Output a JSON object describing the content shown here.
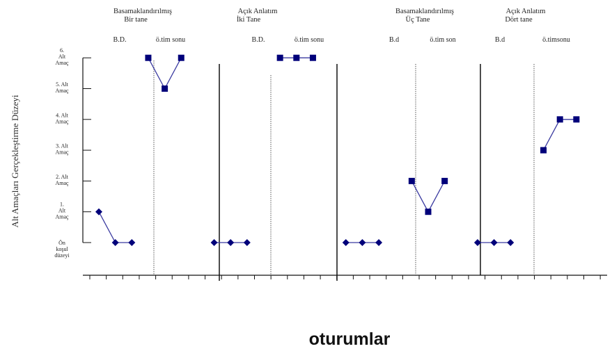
{
  "chart_data": {
    "type": "line",
    "title": "",
    "xlabel": "oturumlar",
    "ylabel": "Alt Amaçları Gerçekleştirme Düzeyi",
    "ylim": [
      0,
      6
    ],
    "y_ticks": [
      {
        "value": 0,
        "lines": [
          "Ön",
          "koşul",
          "düzeyi"
        ]
      },
      {
        "value": 1,
        "lines": [
          "1.",
          "Alt",
          "Amaç"
        ]
      },
      {
        "value": 2,
        "lines": [
          "2. Alt",
          "Amaç"
        ]
      },
      {
        "value": 3,
        "lines": [
          "3. Alt",
          "Amaç"
        ]
      },
      {
        "value": 4,
        "lines": [
          "4. Alt",
          "Amaç"
        ]
      },
      {
        "value": 5,
        "lines": [
          "5. Alt",
          "Amaç"
        ]
      },
      {
        "value": 6,
        "lines": [
          "6.",
          "Alt",
          "Amaç"
        ]
      }
    ],
    "x_sessions": 28,
    "grid": false,
    "goals": [
      {
        "title": [
          "Basamaklandırılmış",
          "Bir tane"
        ],
        "phases": [
          "B.D.",
          "ö.tim sonu"
        ]
      },
      {
        "title": [
          "Açık  Anlatım",
          "İki Tane"
        ],
        "phases": [
          "B.D.",
          "ö.tim sonu"
        ]
      },
      {
        "title": [
          "Basamaklandırılmış",
          "Üç Tane"
        ],
        "phases": [
          "B.d",
          "ö.tim son"
        ]
      },
      {
        "title": [
          "Açık   Anlatım",
          "Dört tane"
        ],
        "phases": [
          "B.d",
          "ö.timsonu"
        ]
      }
    ],
    "series": [
      {
        "marker": "diamond",
        "x": [
          1,
          2,
          3
        ],
        "values": [
          1,
          0,
          0
        ]
      },
      {
        "marker": "square",
        "x": [
          4,
          5,
          6
        ],
        "values": [
          6,
          5,
          6
        ]
      },
      {
        "marker": "diamond",
        "x": [
          8,
          9,
          10
        ],
        "values": [
          0,
          0,
          0
        ]
      },
      {
        "marker": "square",
        "x": [
          12,
          13,
          14
        ],
        "values": [
          6,
          6,
          6
        ]
      },
      {
        "marker": "diamond",
        "x": [
          16,
          17,
          18
        ],
        "values": [
          0,
          0,
          0
        ]
      },
      {
        "marker": "square",
        "x": [
          20,
          21,
          22
        ],
        "values": [
          2,
          1,
          2
        ]
      },
      {
        "marker": "diamond",
        "x": [
          24,
          25,
          26
        ],
        "values": [
          0,
          0,
          0
        ]
      },
      {
        "marker": "square",
        "x": [
          28,
          29,
          30
        ],
        "values": [
          3,
          4,
          4
        ]
      }
    ],
    "line_color": "#3a3aa0",
    "marker_color": "#00007a"
  }
}
